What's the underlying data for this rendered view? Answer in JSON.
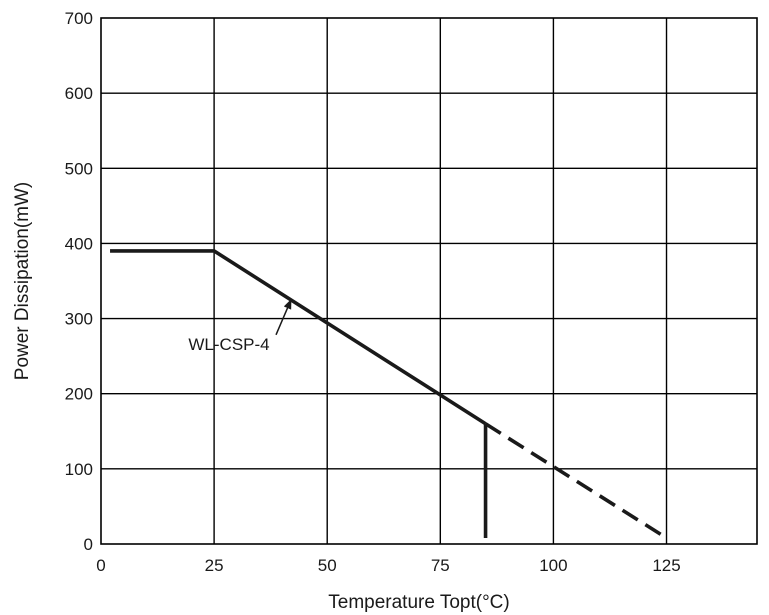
{
  "chart_data": {
    "type": "line",
    "title": "",
    "xlabel": "Temperature Topt(°C)",
    "ylabel": "Power Dissipation(mW)",
    "xlim": [
      0,
      145
    ],
    "ylim": [
      0,
      700
    ],
    "x_ticks": [
      0,
      25,
      50,
      75,
      100,
      125
    ],
    "y_ticks": [
      0,
      100,
      200,
      300,
      400,
      500,
      600,
      700
    ],
    "grid": true,
    "series": [
      {
        "name": "WL-CSP-4",
        "style": "solid",
        "x": [
          2,
          25,
          85
        ],
        "y": [
          390,
          390,
          160
        ]
      },
      {
        "name": "",
        "style": "solid",
        "x": [
          85,
          85
        ],
        "y": [
          160,
          8
        ]
      },
      {
        "name": "",
        "style": "dashed",
        "x": [
          85,
          125
        ],
        "y": [
          160,
          8
        ]
      }
    ],
    "annotations": [
      {
        "text": "WL-CSP-4",
        "points_to": {
          "x": 42,
          "y": 325
        }
      }
    ]
  }
}
